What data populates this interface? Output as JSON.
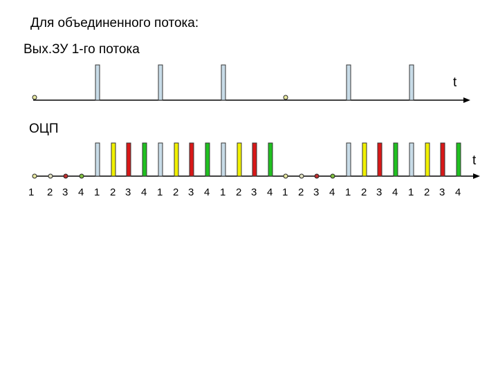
{
  "title": "Для объединенного потока:",
  "row1_label": "Вых.ЗУ 1-го потока",
  "row2_label": "ОЦП",
  "axis_label": "t",
  "pulse_numbers": [
    "1",
    "2",
    "3",
    "4",
    "1",
    "2",
    "3",
    "4",
    "1",
    "2",
    "3",
    "4",
    "1",
    "2",
    "3",
    "4",
    "1",
    "2",
    "3",
    "4",
    "1",
    "2",
    "3",
    "4",
    "1",
    "2",
    "3",
    "4"
  ],
  "row1_pulses": [
    0,
    1,
    1,
    1,
    0,
    1,
    1
  ],
  "row2_pulses": [
    [
      0,
      0,
      0,
      0
    ],
    [
      1,
      1,
      1,
      1
    ],
    [
      1,
      1,
      1,
      1
    ],
    [
      1,
      1,
      1,
      1
    ],
    [
      0,
      0,
      0,
      0
    ],
    [
      1,
      1,
      1,
      1
    ],
    [
      1,
      1,
      1,
      1
    ]
  ],
  "colors": {
    "ch1": "#c8dce8",
    "ch2": "#f0f000",
    "ch3": "#d81818",
    "ch4": "#20c020",
    "dot_ch1": "#e8e8a0",
    "dot_ch2": "#e0e0c0",
    "dot_ch3": "#c03030",
    "dot_ch4": "#80c040"
  }
}
